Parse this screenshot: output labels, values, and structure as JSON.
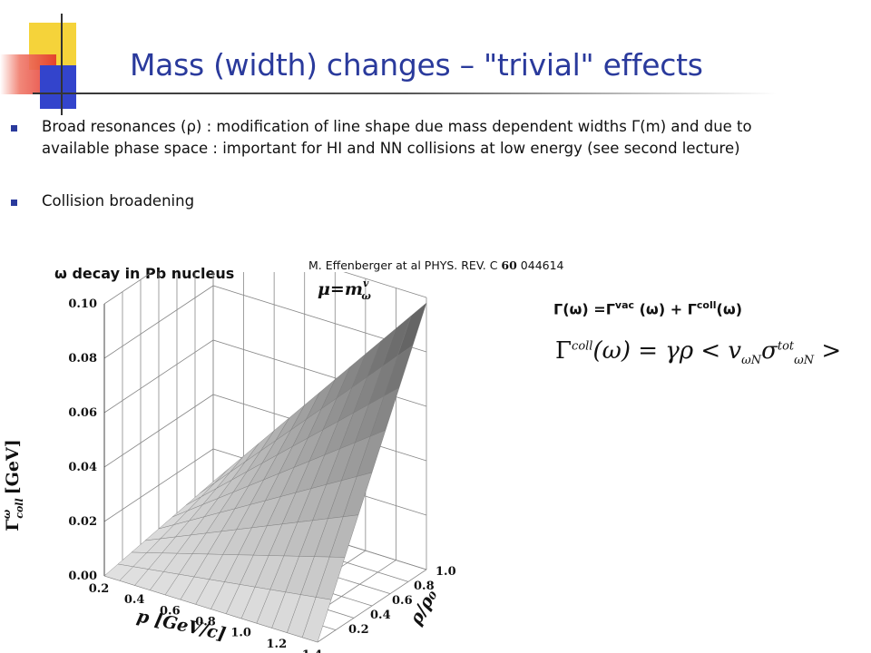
{
  "slide": {
    "title": "Mass (width) changes – \"trivial\" effects",
    "bullets": [
      "Broad resonances (ρ) : modification of line shape due mass dependent widths Γ(m) and due to available phase space : important for HI and NN collisions at low energy (see second lecture)",
      "Collision broadening"
    ],
    "citation_prefix": "M. Effenberger at al PHYS. REV. C ",
    "citation_volume": "60",
    "citation_suffix": " 044614",
    "figure_label": "ω decay in Pb nucleus",
    "gamma_eq": {
      "lhs": "Γ(ω) =Γ",
      "sup1": "vac",
      "mid": " (ω) + Γ",
      "sup2": "coll",
      "end": "(ω)"
    },
    "formula": {
      "gamma": "Γ",
      "sup_coll": "coll",
      "arg": "(ω) = γρ < v",
      "sub1": "ωN",
      "sigma": "σ",
      "sup_tot": "tot",
      "sub2": "ωN",
      "close": " >"
    },
    "colors": {
      "title": "#2a3a9c",
      "bullet": "#2a3a9c",
      "deco_yellow": "#f5d33a",
      "deco_red": "#e2332b",
      "deco_blue": "#3344cc"
    }
  },
  "chart_data": {
    "type": "surface3d",
    "title": "",
    "mass_label": "μ=m",
    "mass_sup": "v",
    "mass_sub": "ω",
    "z_label": "Γ",
    "z_sup": "ω",
    "z_sub": "coll",
    "z_unit": "[GeV]",
    "x_label": "p [GeV/c]",
    "y_label": "ρ/ρ₀",
    "z_ticks": [
      "0.00",
      "0.02",
      "0.04",
      "0.06",
      "0.08",
      "0.10"
    ],
    "x_ticks": [
      "0.2",
      "0.4",
      "0.6",
      "0.8",
      "1.0",
      "1.2",
      "1.4"
    ],
    "y_ticks": [
      "0.2",
      "0.4",
      "0.6",
      "0.8",
      "1.0"
    ],
    "x_range": [
      0.2,
      1.4
    ],
    "y_range": [
      0.0,
      1.0
    ],
    "z_range": [
      0.0,
      0.1
    ],
    "surface_corners": [
      {
        "p": 0.2,
        "rho": 0.0,
        "gamma": 0.0
      },
      {
        "p": 1.4,
        "rho": 0.0,
        "gamma": 0.0
      },
      {
        "p": 1.4,
        "rho": 1.0,
        "gamma": 0.098
      },
      {
        "p": 0.2,
        "rho": 1.0,
        "gamma": 0.008
      }
    ],
    "grid": true
  }
}
